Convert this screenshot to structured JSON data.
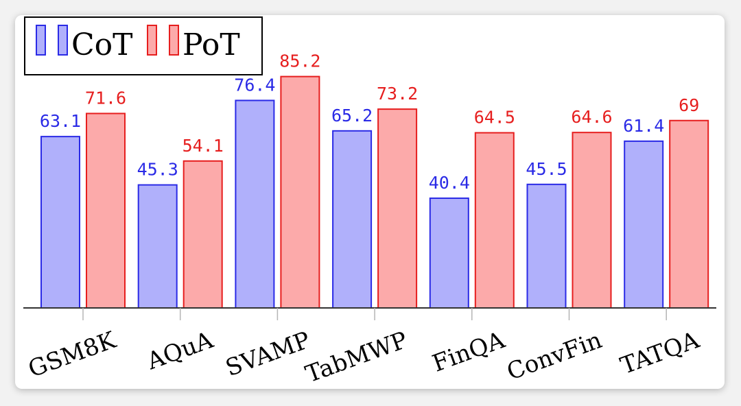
{
  "chart_data": {
    "type": "bar",
    "title": "",
    "xlabel": "",
    "ylabel": "",
    "ylim": [
      0,
      100
    ],
    "grid": false,
    "legend_position": "top-left",
    "categories": [
      "GSM8K",
      "AQuA",
      "SVAMP",
      "TabMWP",
      "FinQA",
      "ConvFin",
      "TATQA"
    ],
    "series": [
      {
        "name": "CoT",
        "color": "#b0b0fb",
        "edge_color": "#2a2ae6",
        "values": [
          63.1,
          45.3,
          76.4,
          65.2,
          40.4,
          45.5,
          61.4
        ],
        "labels": [
          "63.1",
          "45.3",
          "76.4",
          "65.2",
          "40.4",
          "45.5",
          "61.4"
        ]
      },
      {
        "name": "PoT",
        "color": "#fcaaaa",
        "edge_color": "#e61e1e",
        "values": [
          71.6,
          54.1,
          85.2,
          73.2,
          64.5,
          64.6,
          69
        ],
        "labels": [
          "71.6",
          "54.1",
          "85.2",
          "73.2",
          "64.5",
          "64.6",
          "69"
        ]
      }
    ]
  }
}
